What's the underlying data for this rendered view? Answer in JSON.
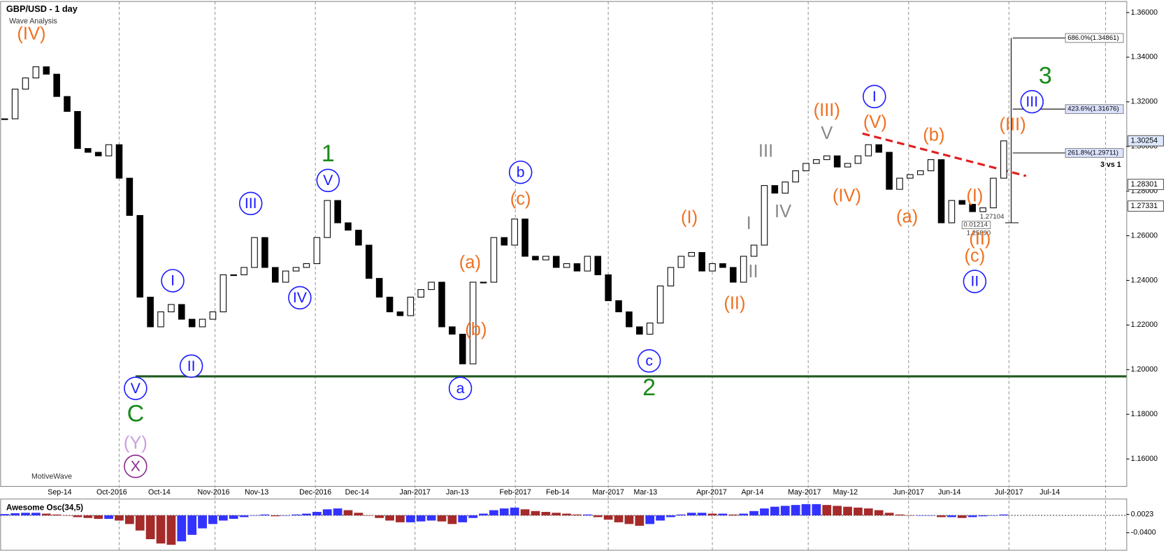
{
  "chart_data": [
    {
      "type": "candlestick",
      "title": "GBP/USD - 1 day",
      "subtitle": "Wave Analysis",
      "watermark": "MotiveWave",
      "x_labels": [
        "Sep-14",
        "Oct-2016",
        "Oct-14",
        "Nov-2016",
        "Nov-13",
        "Dec-2016",
        "Dec-14",
        "Jan-2017",
        "Jan-13",
        "Feb-2017",
        "Feb-14",
        "Mar-2017",
        "Mar-13",
        "Apr-2017",
        "Apr-14",
        "May-2017",
        "May-12",
        "Jun-2017",
        "Jun-14",
        "Jul-2017",
        "Jul-14"
      ],
      "closes": [
        1.3124,
        1.3257,
        1.3307,
        1.3357,
        1.3324,
        1.3224,
        1.3157,
        1.2991,
        1.2974,
        1.2958,
        1.3008,
        1.2858,
        1.2691,
        1.2325,
        1.2192,
        1.2259,
        1.2292,
        1.2226,
        1.2192,
        1.2226,
        1.2259,
        1.2425,
        1.2425,
        1.2458,
        1.2592,
        1.2458,
        1.2392,
        1.2442,
        1.2458,
        1.2475,
        1.2592,
        1.2758,
        1.2658,
        1.2625,
        1.2558,
        1.2409,
        1.2325,
        1.2259,
        1.2242,
        1.2325,
        1.2359,
        1.2392,
        1.2192,
        1.2159,
        1.2026,
        1.2392,
        1.2392,
        1.2592,
        1.2558,
        1.2675,
        1.2508,
        1.2492,
        1.2508,
        1.2458,
        1.2475,
        1.2442,
        1.2508,
        1.2425,
        1.2309,
        1.2259,
        1.2192,
        1.2159,
        1.2209,
        1.2375,
        1.2458,
        1.2508,
        1.2525,
        1.2442,
        1.2475,
        1.2458,
        1.2392,
        1.2508,
        1.2558,
        1.2825,
        1.2791,
        1.2841,
        1.2891,
        1.2924,
        1.2941,
        1.2958,
        1.2908,
        1.2924,
        1.2958,
        1.3008,
        1.2974,
        1.2808,
        1.2858,
        1.2874,
        1.2891,
        1.2941,
        1.2658,
        1.2758,
        1.2741,
        1.2708,
        1.2725,
        1.2858,
        1.3025
      ],
      "up_color": "#ffffff",
      "down_color": "#000000",
      "ylim": [
        1.1477,
        1.3643
      ],
      "yticks": [
        {
          "value": 1.16,
          "label": "1.16000"
        },
        {
          "value": 1.18,
          "label": "1.18000"
        },
        {
          "value": 1.2,
          "label": "1.20000"
        },
        {
          "value": 1.22,
          "label": "1.22000"
        },
        {
          "value": 1.24,
          "label": "1.24000"
        },
        {
          "value": 1.26,
          "label": "1.26000"
        },
        {
          "value": 1.28,
          "label": "1.28000"
        },
        {
          "value": 1.3,
          "label": "1.30000"
        },
        {
          "value": 1.32,
          "label": "1.32000"
        },
        {
          "value": 1.34,
          "label": "1.34000"
        },
        {
          "value": 1.36,
          "label": "1.36000"
        }
      ],
      "support_line": 1.197,
      "support_color": "#1f5a1f",
      "trend_line": [
        1.3058,
        1.2868
      ],
      "trend_color": "#e02020",
      "fib_levels": [
        {
          "value": 1.34861,
          "label": "686.0%(1.34861)"
        },
        {
          "value": 1.31676,
          "label": "423.6%(1.31676)"
        },
        {
          "value": 1.29711,
          "label": "261.8%(1.29711)"
        }
      ],
      "fib_note": "3 vs 1",
      "price_tags": [
        {
          "value": 1.30254,
          "label": "1.30254"
        },
        {
          "value": 1.28301,
          "label": "1.28301"
        },
        {
          "value": 1.27331,
          "label": "1.27331"
        }
      ],
      "measure_labels": [
        "1.27104",
        "0.01214",
        "1.25890"
      ],
      "annotations": [
        {
          "text": "(IV)",
          "color": "#f07020",
          "circled": false
        },
        {
          "text": "V",
          "color": "#1a1aff",
          "circled": true
        },
        {
          "text": "C",
          "color": "#1a8a1a",
          "circled": false
        },
        {
          "text": "(Y)",
          "color": "#c9a0e0",
          "circled": false
        },
        {
          "text": "X",
          "color": "#8b2a8b",
          "circled": true
        },
        {
          "text": "I",
          "color": "#1a1aff",
          "circled": true
        },
        {
          "text": "II",
          "color": "#1a1aff",
          "circled": true
        },
        {
          "text": "III",
          "color": "#1a1aff",
          "circled": true
        },
        {
          "text": "IV",
          "color": "#1a1aff",
          "circled": true
        },
        {
          "text": "V",
          "color": "#1a1aff",
          "circled": true
        },
        {
          "text": "1",
          "color": "#1a8a1a",
          "circled": false
        },
        {
          "text": "a",
          "color": "#1a1aff",
          "circled": true
        },
        {
          "text": "(a)",
          "color": "#f07020",
          "circled": false
        },
        {
          "text": "(b)",
          "color": "#f07020",
          "circled": false
        },
        {
          "text": "b",
          "color": "#1a1aff",
          "circled": true
        },
        {
          "text": "(c)",
          "color": "#f07020",
          "circled": false
        },
        {
          "text": "c",
          "color": "#1a1aff",
          "circled": true
        },
        {
          "text": "2",
          "color": "#1a8a1a",
          "circled": false
        },
        {
          "text": "(I)",
          "color": "#f07020",
          "circled": false
        },
        {
          "text": "(II)",
          "color": "#f07020",
          "circled": false
        },
        {
          "text": "I",
          "color": "#888888",
          "circled": false
        },
        {
          "text": "II",
          "color": "#888888",
          "circled": false
        },
        {
          "text": "III",
          "color": "#888888",
          "circled": false
        },
        {
          "text": "IV",
          "color": "#888888",
          "circled": false
        },
        {
          "text": "(III)",
          "color": "#f07020",
          "circled": false
        },
        {
          "text": "V",
          "color": "#888888",
          "circled": false
        },
        {
          "text": "(IV)",
          "color": "#f07020",
          "circled": false
        },
        {
          "text": "I",
          "color": "#1a1aff",
          "circled": true
        },
        {
          "text": "(V)",
          "color": "#f07020",
          "circled": false
        },
        {
          "text": "(b)",
          "color": "#f07020",
          "circled": false
        },
        {
          "text": "(a)",
          "color": "#f07020",
          "circled": false
        },
        {
          "text": "(I)",
          "color": "#f07020",
          "circled": false
        },
        {
          "text": "(II)",
          "color": "#f07020",
          "circled": false
        },
        {
          "text": "(c)",
          "color": "#f07020",
          "circled": false
        },
        {
          "text": "II",
          "color": "#1a1aff",
          "circled": true
        },
        {
          "text": "(III)",
          "color": "#f07020",
          "circled": false
        },
        {
          "text": "III",
          "color": "#1a1aff",
          "circled": true
        },
        {
          "text": "3",
          "color": "#1a8a1a",
          "circled": false
        }
      ]
    },
    {
      "type": "bar",
      "title": "Awesome Osc(34,5)",
      "up_color": "#3333ff",
      "down_color": "#a52a2a",
      "values": [
        0.003,
        0.005,
        0.006,
        0.006,
        0.004,
        0.002,
        0,
        -0.004,
        -0.006,
        -0.008,
        -0.008,
        -0.012,
        -0.02,
        -0.035,
        -0.055,
        -0.065,
        -0.068,
        -0.06,
        -0.045,
        -0.03,
        -0.02,
        -0.012,
        -0.008,
        -0.004,
        0,
        0.002,
        -0.002,
        0,
        0.002,
        0.004,
        0.008,
        0.014,
        0.016,
        0.012,
        0.006,
        0,
        -0.006,
        -0.012,
        -0.016,
        -0.016,
        -0.014,
        -0.012,
        -0.014,
        -0.02,
        -0.016,
        -0.006,
        0.004,
        0.012,
        0.016,
        0.018,
        0.014,
        0.01,
        0.008,
        0.006,
        0.004,
        0.002,
        0.002,
        -0.004,
        -0.01,
        -0.016,
        -0.02,
        -0.024,
        -0.02,
        -0.012,
        -0.004,
        0.002,
        0.006,
        0.006,
        0.004,
        0.004,
        0.002,
        0.004,
        0.01,
        0.016,
        0.02,
        0.022,
        0.024,
        0.026,
        0.026,
        0.024,
        0.022,
        0.02,
        0.018,
        0.016,
        0.012,
        0.006,
        0.002,
        0,
        0,
        0,
        -0.004,
        -0.004,
        -0.006,
        -0.004,
        -0.002,
        0,
        0.002
      ],
      "ylim": [
        -0.0806,
        0.0378
      ],
      "yticks": [
        0.0023,
        {
          "value": -0.04,
          "label": "-0.0400"
        }
      ]
    }
  ]
}
